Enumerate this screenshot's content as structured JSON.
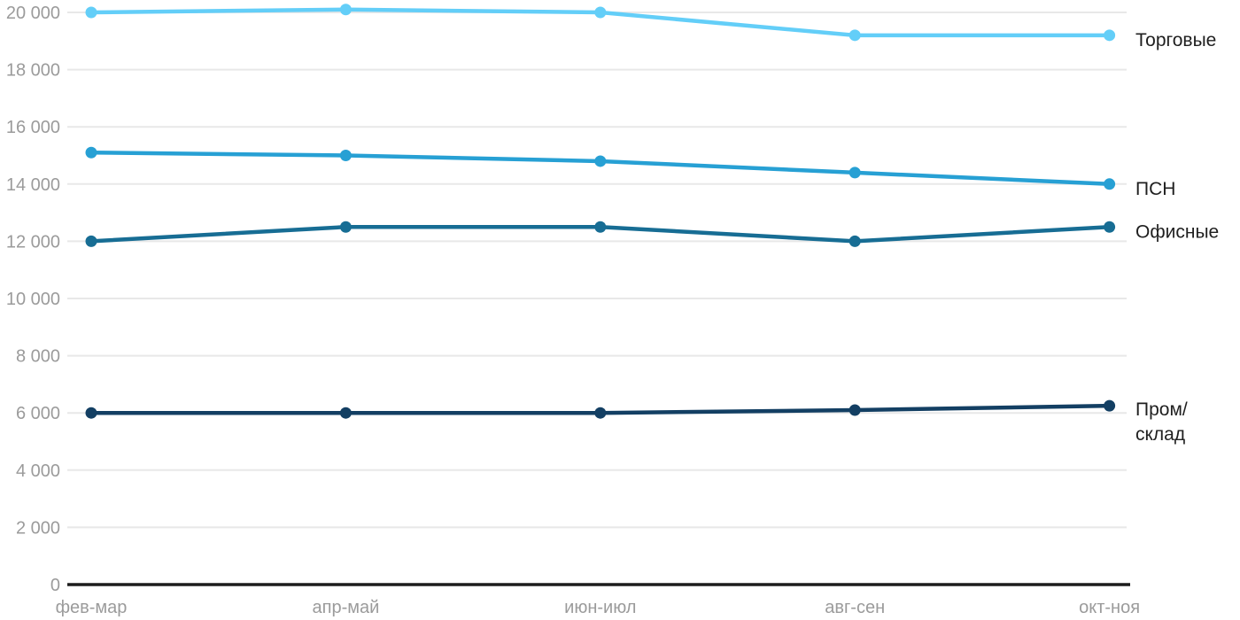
{
  "chart_data": {
    "type": "line",
    "title": "",
    "xlabel": "",
    "ylabel": "",
    "categories": [
      "фев-мар",
      "апр-май",
      "июн-июл",
      "авг-сен",
      "окт-ноя"
    ],
    "series": [
      {
        "key": "torgovye",
        "name": "Торговые",
        "label_lines": [
          "Торговые"
        ],
        "color": "#63cef8",
        "values": [
          20000,
          20100,
          20000,
          19200,
          19200
        ]
      },
      {
        "key": "psn",
        "name": "ПСН",
        "label_lines": [
          "ПСН"
        ],
        "color": "#27a0d4",
        "values": [
          15100,
          15000,
          14800,
          14400,
          14000
        ]
      },
      {
        "key": "ofisnye",
        "name": "Офисные",
        "label_lines": [
          "Офисные"
        ],
        "color": "#176d94",
        "values": [
          12000,
          12500,
          12500,
          12000,
          12500
        ]
      },
      {
        "key": "prom-sklad",
        "name": "Пром/склад",
        "label_lines": [
          "Пром/",
          "склад"
        ],
        "color": "#133f63",
        "values": [
          6000,
          6000,
          6000,
          6100,
          6250
        ]
      }
    ],
    "ylim": [
      0,
      20000
    ],
    "ytick_step": 2000,
    "ytick_labels": [
      "0",
      "2 000",
      "4 000",
      "6 000",
      "8 000",
      "10 000",
      "12 000",
      "14 000",
      "16 000",
      "18 000",
      "20 000"
    ],
    "grid": "horizontal",
    "legend_position": "right-inline-labels",
    "colors": {
      "grid": "#e8e8e8",
      "axis": "#1c1c1c",
      "tick_label": "#9b9b9b",
      "series_label": "#1f1f1f",
      "background": "#ffffff"
    }
  }
}
